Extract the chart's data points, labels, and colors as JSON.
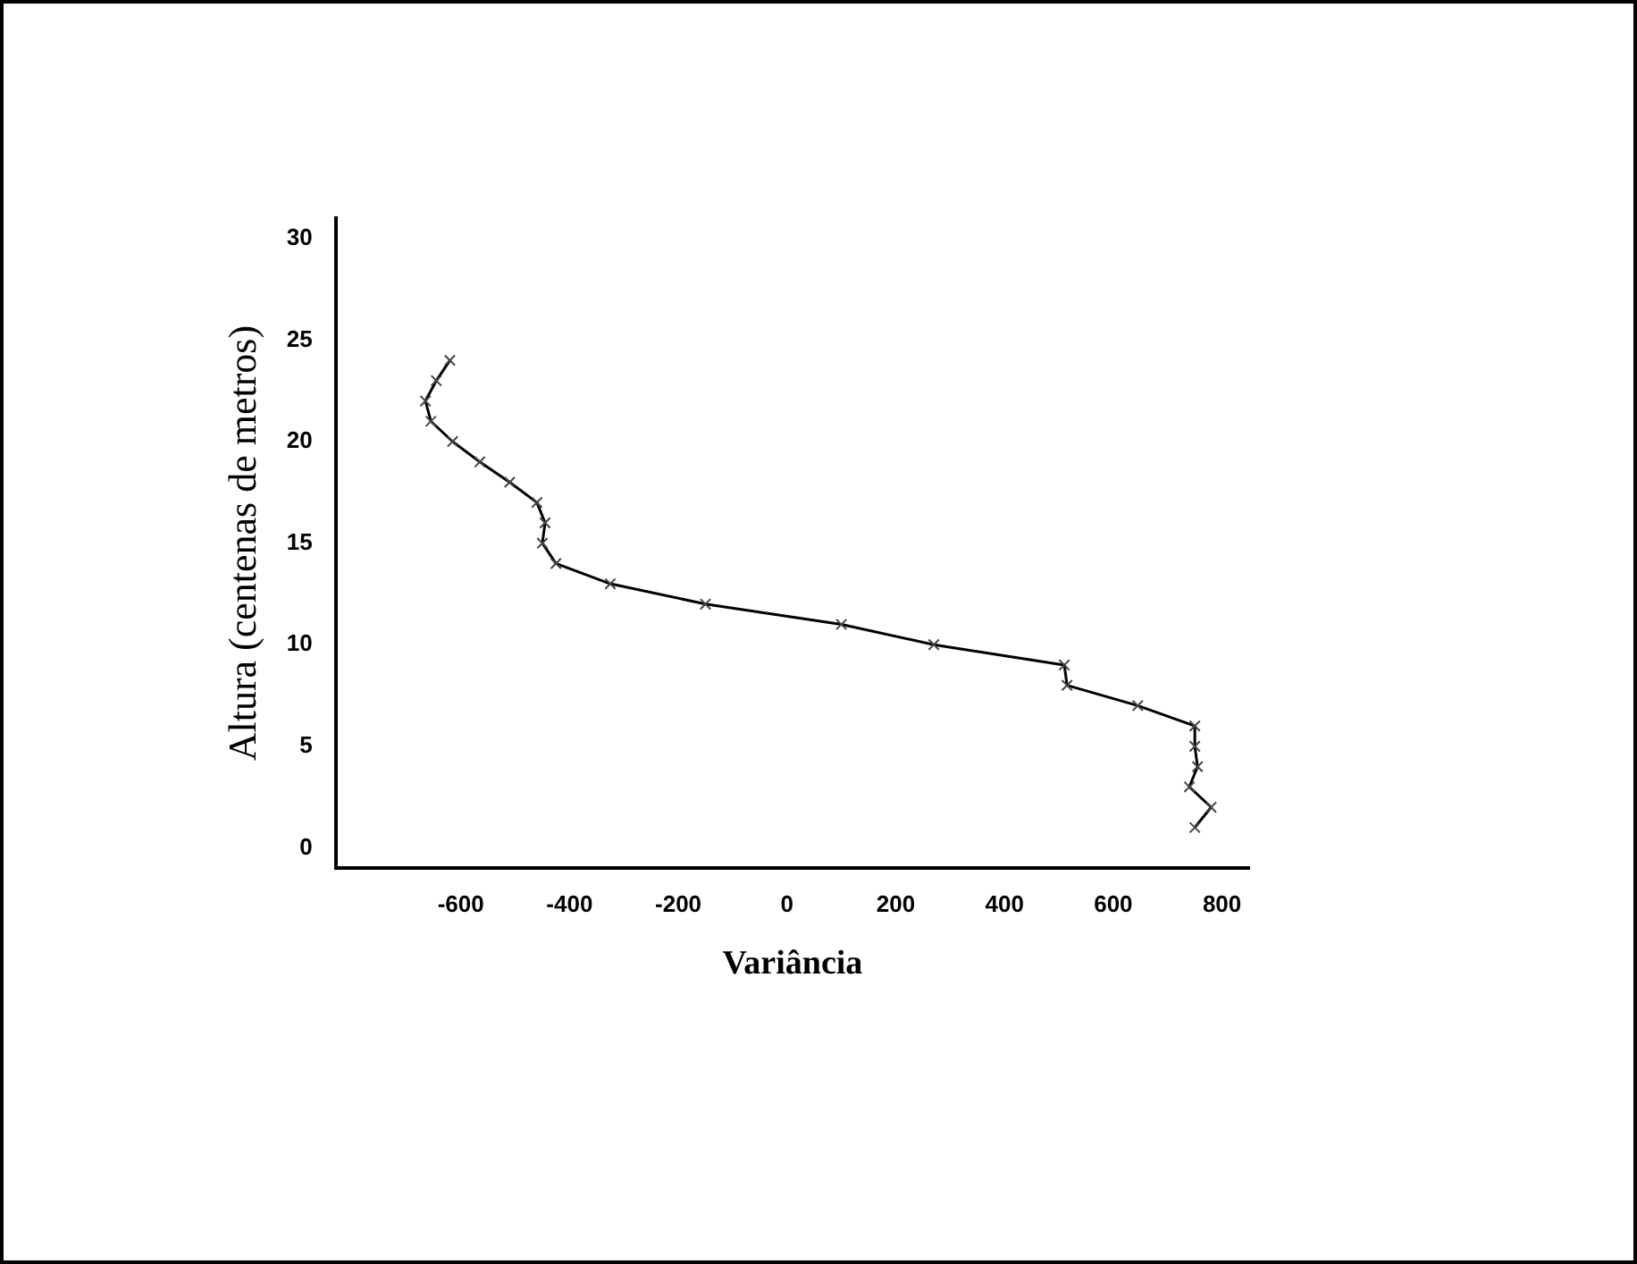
{
  "chart_data": {
    "type": "line",
    "xlabel": "Variância",
    "ylabel": "Altura (centenas de metros)",
    "series": [
      {
        "color": "#000000",
        "x": [
          750,
          780,
          740,
          755,
          750,
          750,
          645,
          515,
          510,
          270,
          100,
          -150,
          -325,
          -425,
          -450,
          -445,
          -460,
          -510,
          -565,
          -615,
          -655,
          -665,
          -645,
          -620
        ],
        "values": [
          1,
          2,
          3,
          4,
          5,
          6,
          7,
          8,
          9,
          10,
          11,
          12,
          13,
          14,
          15,
          16,
          17,
          18,
          19,
          20,
          21,
          22,
          23,
          24
        ]
      }
    ],
    "xlim": [
      -830,
      850
    ],
    "xticks": [
      -600,
      -400,
      -200,
      0,
      200,
      400,
      600,
      800
    ],
    "ylim": [
      -1,
      31
    ],
    "yticks": [
      0,
      5,
      10,
      15,
      20,
      25,
      30
    ],
    "marker": "cross",
    "line_style": "solid",
    "grid": false,
    "legend": false
  }
}
